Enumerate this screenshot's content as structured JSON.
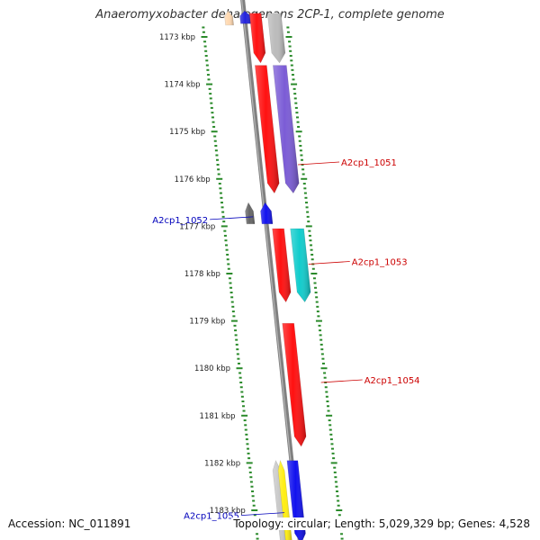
{
  "title": "Anaeromyxobacter dehalogenans 2CP-1, complete genome",
  "footer": {
    "accession": "Accession: NC_011891",
    "summary": "Topology: circular; Length: 5,029,329 bp; Genes: 4,528"
  },
  "colors": {
    "backbone": "#808080",
    "tick": "#2a8a2a",
    "label_forward": "#cc0000",
    "label_reverse": "#0000bb"
  },
  "kbp_marks": [
    {
      "text": "1173 kbp",
      "kbp": 1173
    },
    {
      "text": "1174 kbp",
      "kbp": 1174
    },
    {
      "text": "1175 kbp",
      "kbp": 1175
    },
    {
      "text": "1176 kbp",
      "kbp": 1176
    },
    {
      "text": "1177 kbp",
      "kbp": 1177
    },
    {
      "text": "1178 kbp",
      "kbp": 1178
    },
    {
      "text": "1179 kbp",
      "kbp": 1179
    },
    {
      "text": "1180 kbp",
      "kbp": 1180
    },
    {
      "text": "1181 kbp",
      "kbp": 1181
    },
    {
      "text": "1182 kbp",
      "kbp": 1182
    },
    {
      "text": "1183 kbp",
      "kbp": 1183
    }
  ],
  "features": [
    {
      "lane": "cds_rev",
      "start": 1172.45,
      "end": 1172.75,
      "color": "#ffd8b0",
      "dir": "-"
    },
    {
      "lane": "gene_rev",
      "start": 1172.45,
      "end": 1172.72,
      "color": "#2222dd",
      "dir": "-"
    },
    {
      "lane": "gene_fwd",
      "start": 1172.5,
      "end": 1173.55,
      "color": "#ff1111",
      "dir": "+"
    },
    {
      "lane": "cds_fwd",
      "start": 1172.5,
      "end": 1173.55,
      "color": "#bbbbbb",
      "dir": "+"
    },
    {
      "lane": "gene_fwd",
      "start": 1173.6,
      "end": 1176.3,
      "color": "#ff1111",
      "dir": "+"
    },
    {
      "lane": "cds_fwd",
      "start": 1173.6,
      "end": 1176.3,
      "color": "#7b5cd6",
      "dir": "+"
    },
    {
      "lane": "cds_rev",
      "start": 1176.5,
      "end": 1176.95,
      "color": "#666666",
      "dir": "-"
    },
    {
      "lane": "gene_rev",
      "start": 1176.5,
      "end": 1176.95,
      "color": "#1111ee",
      "dir": "-"
    },
    {
      "lane": "gene_fwd",
      "start": 1177.05,
      "end": 1178.6,
      "color": "#ff1111",
      "dir": "+"
    },
    {
      "lane": "cds_fwd",
      "start": 1177.05,
      "end": 1178.6,
      "color": "#11cccc",
      "dir": "+"
    },
    {
      "lane": "gene_fwd",
      "start": 1179.05,
      "end": 1181.65,
      "color": "#ff1111",
      "dir": "+"
    },
    {
      "lane": "cds_rev",
      "start": 1181.95,
      "end": 1183.7,
      "color": "#c8c8c8",
      "dir": "-"
    },
    {
      "lane": "cds_rev2",
      "start": 1181.95,
      "end": 1183.7,
      "color": "#ffee11",
      "dir": "-"
    },
    {
      "lane": "gene_rev",
      "start": 1181.95,
      "end": 1183.7,
      "color": "#1111ee",
      "dir": "+"
    }
  ],
  "labels": [
    {
      "text": "A2cp1_1051",
      "kbp": 1175.7,
      "side": "right"
    },
    {
      "text": "A2cp1_1052",
      "kbp": 1176.8,
      "side": "left"
    },
    {
      "text": "A2cp1_1053",
      "kbp": 1177.8,
      "side": "right"
    },
    {
      "text": "A2cp1_1054",
      "kbp": 1180.3,
      "side": "right"
    },
    {
      "text": "A2cp1_1055",
      "kbp": 1183.05,
      "side": "left"
    }
  ]
}
